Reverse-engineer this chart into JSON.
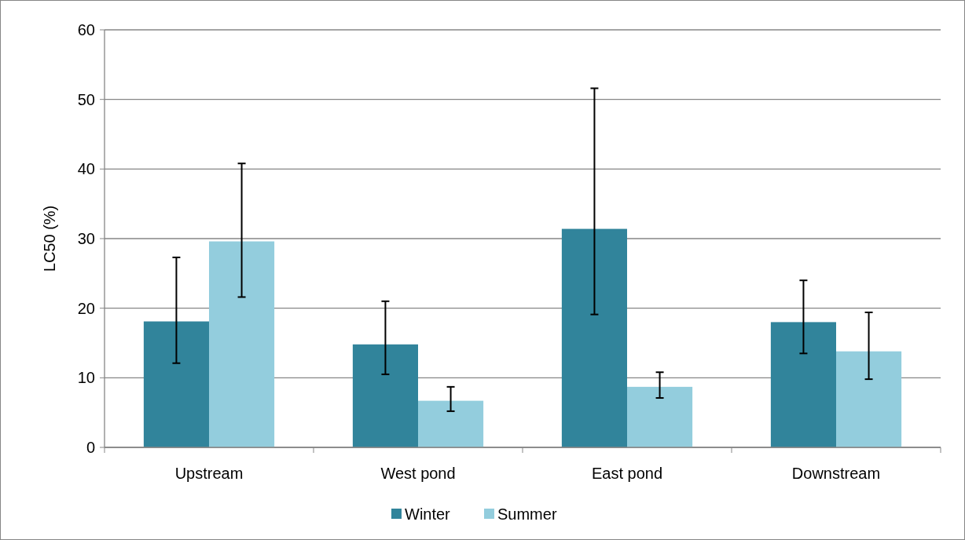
{
  "chart_data": {
    "type": "bar",
    "ylabel": "LC50 (%)",
    "categories": [
      "Upstream",
      "West pond",
      "East pond",
      "Downstream"
    ],
    "series": [
      {
        "name": "Winter",
        "color": "#31849b",
        "values": [
          18.1,
          14.8,
          31.4,
          18.0
        ],
        "errors": [
          [
            12.1,
            27.3
          ],
          [
            10.5,
            21.0
          ],
          [
            19.1,
            51.6
          ],
          [
            13.5,
            24.0
          ]
        ]
      },
      {
        "name": "Summer",
        "color": "#93cddd",
        "values": [
          29.6,
          6.7,
          8.7,
          13.8
        ],
        "errors": [
          [
            21.6,
            40.8
          ],
          [
            5.2,
            8.7
          ],
          [
            7.1,
            10.8
          ],
          [
            9.8,
            19.4
          ]
        ]
      }
    ],
    "ylim": [
      0,
      60
    ],
    "yticks": [
      0,
      10,
      20,
      30,
      40,
      50,
      60
    ],
    "grid": "y",
    "legend": "bottom"
  }
}
